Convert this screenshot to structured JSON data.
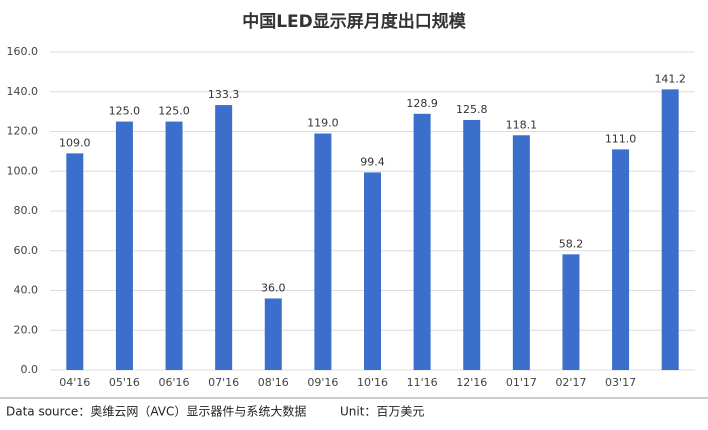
{
  "chart_data": {
    "type": "bar",
    "title": "中国LED显示屏月度出口规模",
    "categories": [
      "04'16",
      "05'16",
      "06'16",
      "07'16",
      "08'16",
      "09'16",
      "10'16",
      "11'16",
      "12'16",
      "01'17",
      "02'17",
      "03'17",
      null
    ],
    "values": [
      109.0,
      125.0,
      125.0,
      133.3,
      36.0,
      119.0,
      99.4,
      128.9,
      125.8,
      118.1,
      58.2,
      111.0,
      141.2
    ],
    "value_labels": [
      "109.0",
      "125.0",
      "125.0",
      "133.3",
      "36.0",
      "119.0",
      "99.4",
      "128.9",
      "125.8",
      "118.1",
      "58.2",
      "111.0",
      "141.2"
    ],
    "color": "#3b6fcb",
    "ylim": [
      0,
      160
    ],
    "yticks": [
      {
        "value": 0,
        "label": "0.0"
      },
      {
        "value": 20,
        "label": "20.0"
      },
      {
        "value": 40,
        "label": "40.0"
      },
      {
        "value": 60,
        "label": "60.0"
      },
      {
        "value": 80,
        "label": "80.0"
      },
      {
        "value": 100,
        "label": "100.0"
      },
      {
        "value": 120,
        "label": "120.0"
      },
      {
        "value": 140,
        "label": "140.0"
      },
      {
        "value": 160,
        "label": "160.0"
      }
    ],
    "grid": true,
    "source": "Data source：奥维云网（AVC）显示器件与系统大数据",
    "unit": "Unit：百万美元"
  }
}
